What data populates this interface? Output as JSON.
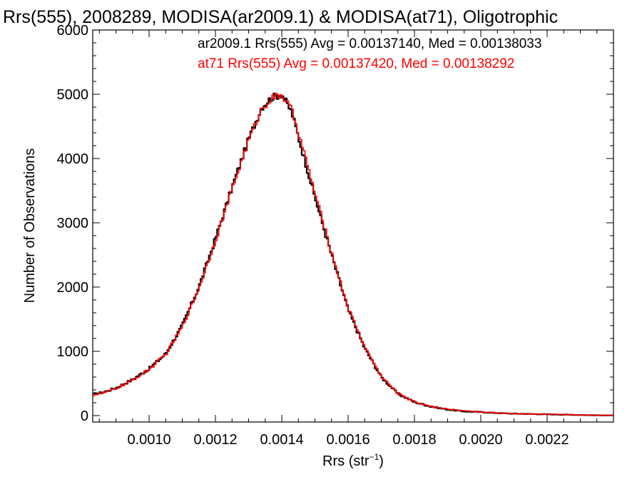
{
  "chart_data": {
    "type": "line",
    "title": "Rrs(555), 2008289, MODISA(ar2009.1) & MODISA(at71), Oligotrophic",
    "xlabel": "Rrs (str",
    "xlabel_exponent": "−1",
    "xlabel_suffix": ")",
    "ylabel": "Number of Observations",
    "xlim": [
      0.00083,
      0.0024
    ],
    "ylim": [
      -100,
      6000
    ],
    "x_ticks": [
      0.001,
      0.0012,
      0.0014,
      0.0016,
      0.0018,
      0.002,
      0.0022
    ],
    "x_tick_labels": [
      "0.0010",
      "0.0012",
      "0.0014",
      "0.0016",
      "0.0018",
      "0.0020",
      "0.0022"
    ],
    "y_ticks": [
      0,
      1000,
      2000,
      3000,
      4000,
      5000,
      6000
    ],
    "y_tick_labels": [
      "0",
      "1000",
      "2000",
      "3000",
      "4000",
      "5000",
      "6000"
    ],
    "grid": false,
    "legend_position": "top-right",
    "series": [
      {
        "name": "ar2009.1",
        "color": "#000000",
        "legend": "ar2009.1 Rrs(555) Avg = 0.00137140, Med = 0.00138033",
        "x": [
          0.00083,
          0.00086,
          0.0009,
          0.00095,
          0.001,
          0.00105,
          0.0011,
          0.00115,
          0.0012,
          0.00125,
          0.0013,
          0.00134,
          0.00137,
          0.0014,
          0.00143,
          0.00146,
          0.0015,
          0.00155,
          0.0016,
          0.00165,
          0.0017,
          0.00175,
          0.0018,
          0.00185,
          0.0019,
          0.00195,
          0.002,
          0.00205,
          0.0021,
          0.00215,
          0.0022,
          0.00225,
          0.0023,
          0.00235,
          0.0024
        ],
        "y": [
          330,
          360,
          430,
          560,
          730,
          960,
          1400,
          2000,
          2750,
          3550,
          4300,
          4800,
          4950,
          5000,
          4720,
          4150,
          3400,
          2500,
          1650,
          1050,
          600,
          340,
          210,
          140,
          95,
          65,
          55,
          40,
          30,
          25,
          20,
          15,
          10,
          5,
          3
        ]
      },
      {
        "name": "at71",
        "color": "#ff0000",
        "legend": "at71 Rrs(555) Avg = 0.00137420, Med = 0.00138292",
        "x": [
          0.00083,
          0.00086,
          0.0009,
          0.00095,
          0.001,
          0.00105,
          0.0011,
          0.00115,
          0.0012,
          0.00125,
          0.0013,
          0.00134,
          0.00137,
          0.0014,
          0.00143,
          0.00146,
          0.0015,
          0.00155,
          0.0016,
          0.00165,
          0.0017,
          0.00175,
          0.0018,
          0.00185,
          0.0019,
          0.00195,
          0.002,
          0.00205,
          0.0021,
          0.00215,
          0.0022,
          0.00225,
          0.0023,
          0.00235,
          0.0024
        ],
        "y": [
          320,
          350,
          420,
          550,
          720,
          950,
          1380,
          1980,
          2720,
          3520,
          4280,
          4780,
          4940,
          4990,
          4760,
          4230,
          3460,
          2540,
          1680,
          1070,
          610,
          345,
          215,
          145,
          100,
          70,
          57,
          42,
          32,
          26,
          21,
          16,
          11,
          6,
          4
        ]
      }
    ]
  }
}
